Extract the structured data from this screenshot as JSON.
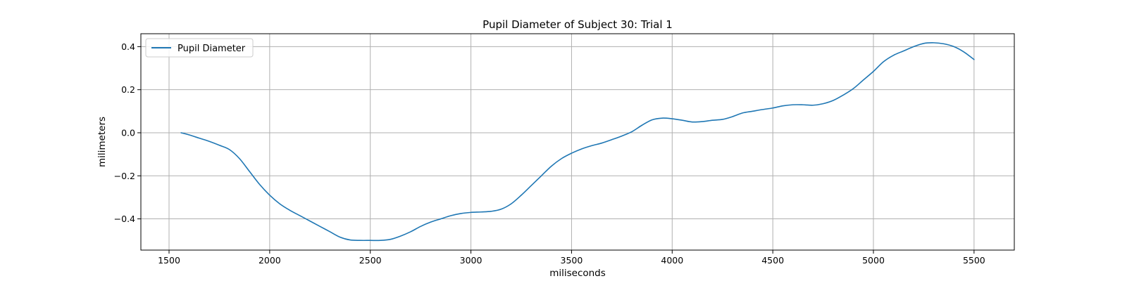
{
  "chart_data": {
    "type": "line",
    "title": "Pupil Diameter of Subject 30: Trial 1",
    "xlabel": "miliseconds",
    "ylabel": "milimeters",
    "xlim": [
      1360,
      5700
    ],
    "ylim": [
      -0.545,
      0.46
    ],
    "xticks": [
      1500,
      2000,
      2500,
      3000,
      3500,
      4000,
      4500,
      5000,
      5500
    ],
    "yticks": [
      -0.4,
      -0.2,
      0.0,
      0.2,
      0.4
    ],
    "xtick_labels": [
      "1500",
      "2000",
      "2500",
      "3000",
      "3500",
      "4000",
      "4500",
      "5000",
      "5500"
    ],
    "ytick_labels": [
      "−0.4",
      "−0.2",
      "0.0",
      "0.2",
      "0.4"
    ],
    "grid": true,
    "legend": {
      "placement": "upper-left",
      "entries": [
        "Pupil Diameter"
      ]
    },
    "series": [
      {
        "name": "Pupil Diameter",
        "color": "#1f77b4",
        "x": [
          1560,
          1600,
          1650,
          1700,
          1750,
          1800,
          1850,
          1900,
          1950,
          2000,
          2050,
          2100,
          2150,
          2200,
          2250,
          2300,
          2350,
          2400,
          2450,
          2500,
          2550,
          2600,
          2650,
          2700,
          2750,
          2800,
          2850,
          2900,
          2950,
          3000,
          3050,
          3100,
          3150,
          3200,
          3250,
          3300,
          3350,
          3400,
          3450,
          3500,
          3550,
          3600,
          3650,
          3700,
          3750,
          3800,
          3850,
          3900,
          3950,
          4000,
          4050,
          4100,
          4150,
          4200,
          4250,
          4300,
          4350,
          4400,
          4450,
          4500,
          4550,
          4600,
          4650,
          4700,
          4750,
          4800,
          4850,
          4900,
          4950,
          5000,
          5050,
          5100,
          5150,
          5200,
          5250,
          5300,
          5350,
          5400,
          5450,
          5500
        ],
        "y": [
          0.0,
          -0.01,
          -0.025,
          -0.04,
          -0.058,
          -0.078,
          -0.12,
          -0.18,
          -0.24,
          -0.29,
          -0.33,
          -0.36,
          -0.385,
          -0.41,
          -0.435,
          -0.46,
          -0.485,
          -0.498,
          -0.5,
          -0.5,
          -0.5,
          -0.495,
          -0.48,
          -0.46,
          -0.435,
          -0.415,
          -0.4,
          -0.385,
          -0.375,
          -0.37,
          -0.368,
          -0.365,
          -0.355,
          -0.33,
          -0.29,
          -0.245,
          -0.2,
          -0.155,
          -0.12,
          -0.095,
          -0.075,
          -0.06,
          -0.048,
          -0.032,
          -0.015,
          0.005,
          0.035,
          0.06,
          0.068,
          0.065,
          0.058,
          0.05,
          0.052,
          0.058,
          0.062,
          0.075,
          0.092,
          0.1,
          0.108,
          0.115,
          0.125,
          0.13,
          0.13,
          0.128,
          0.135,
          0.15,
          0.175,
          0.205,
          0.245,
          0.285,
          0.33,
          0.36,
          0.38,
          0.4,
          0.415,
          0.418,
          0.413,
          0.4,
          0.375,
          0.34
        ]
      }
    ]
  }
}
